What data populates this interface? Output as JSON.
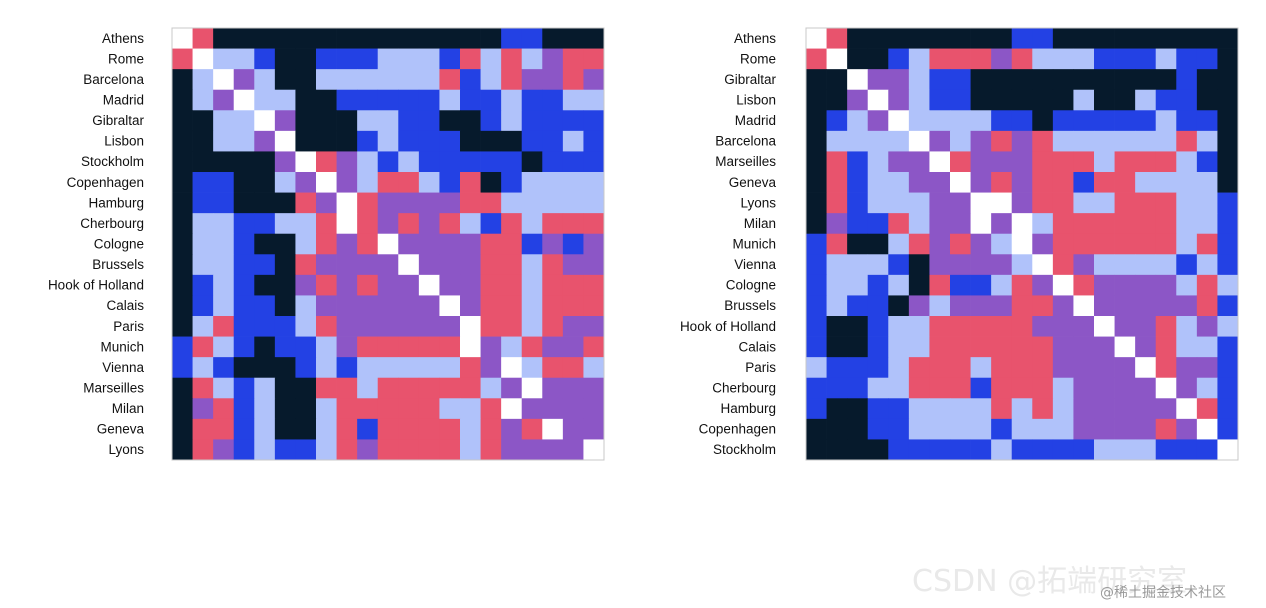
{
  "chart_data": [
    {
      "type": "heatmap",
      "legend": "none",
      "grid": false,
      "color_levels": [
        "#ffffff",
        "#e8536d",
        "#8c56c6",
        "#b0c2fa",
        "#2341e4",
        "#061a2c"
      ],
      "labels": [
        "Athens",
        "Rome",
        "Barcelona",
        "Madrid",
        "Gibraltar",
        "Lisbon",
        "Stockholm",
        "Copenhagen",
        "Hamburg",
        "Cherbourg",
        "Cologne",
        "Brussels",
        "Hook of Holland",
        "Calais",
        "Paris",
        "Munich",
        "Vienna",
        "Marseilles",
        "Milan",
        "Geneva",
        "Lyons"
      ],
      "matrix": [
        "015555555555555544555",
        "103345544433341313211",
        "530235533333314312212",
        "532033554444434434433",
        "553302555334455434444",
        "553320555434445554434",
        "555552012343444445444",
        "544553202311341543333",
        "544555120122221133333",
        "533443310121213413111",
        "533455312102222114242",
        "533445122220222113122",
        "543455212122022113111",
        "543445322222202113111",
        "531444312222220113122",
        "413454432111110231221",
        "434555434333331203113",
        "513435511311111320222",
        "521435531111133102222",
        "511435531411113121022",
        "512434431211113122220"
      ]
    },
    {
      "type": "heatmap",
      "legend": "none",
      "grid": false,
      "color_levels": [
        "#ffffff",
        "#e8536d",
        "#8c56c6",
        "#b0c2fa",
        "#2341e4",
        "#061a2c"
      ],
      "labels": [
        "Athens",
        "Rome",
        "Gibraltar",
        "Lisbon",
        "Madrid",
        "Barcelona",
        "Marseilles",
        "Geneva",
        "Lyons",
        "Milan",
        "Munich",
        "Vienna",
        "Cologne",
        "Brussels",
        "Hook of Holland",
        "Calais",
        "Paris",
        "Cherbourg",
        "Hamburg",
        "Copenhagen",
        "Stockholm"
      ],
      "matrix": [
        "015555555544555555555",
        "105543111213334443445",
        "550223445555555555455",
        "552023445555535534455",
        "543203333445444443445",
        "533330232121333333135",
        "514322012221113111345",
        "514332202121141133335",
        "514333220021133111334",
        "524413220203111111334",
        "415531212302111111314",
        "433345222230123333434",
        "433435144312012222313",
        "434452322211202222214",
        "455433111112220221323",
        "455433111111222021334",
        "344431113111222201224",
        "444331114111322220234",
        "455443333131322222014",
        "555443333433322221204",
        "555544444344443334440"
      ]
    }
  ],
  "watermark": "CSDN @拓端研究室",
  "site": "@稀土掘金技术社区"
}
